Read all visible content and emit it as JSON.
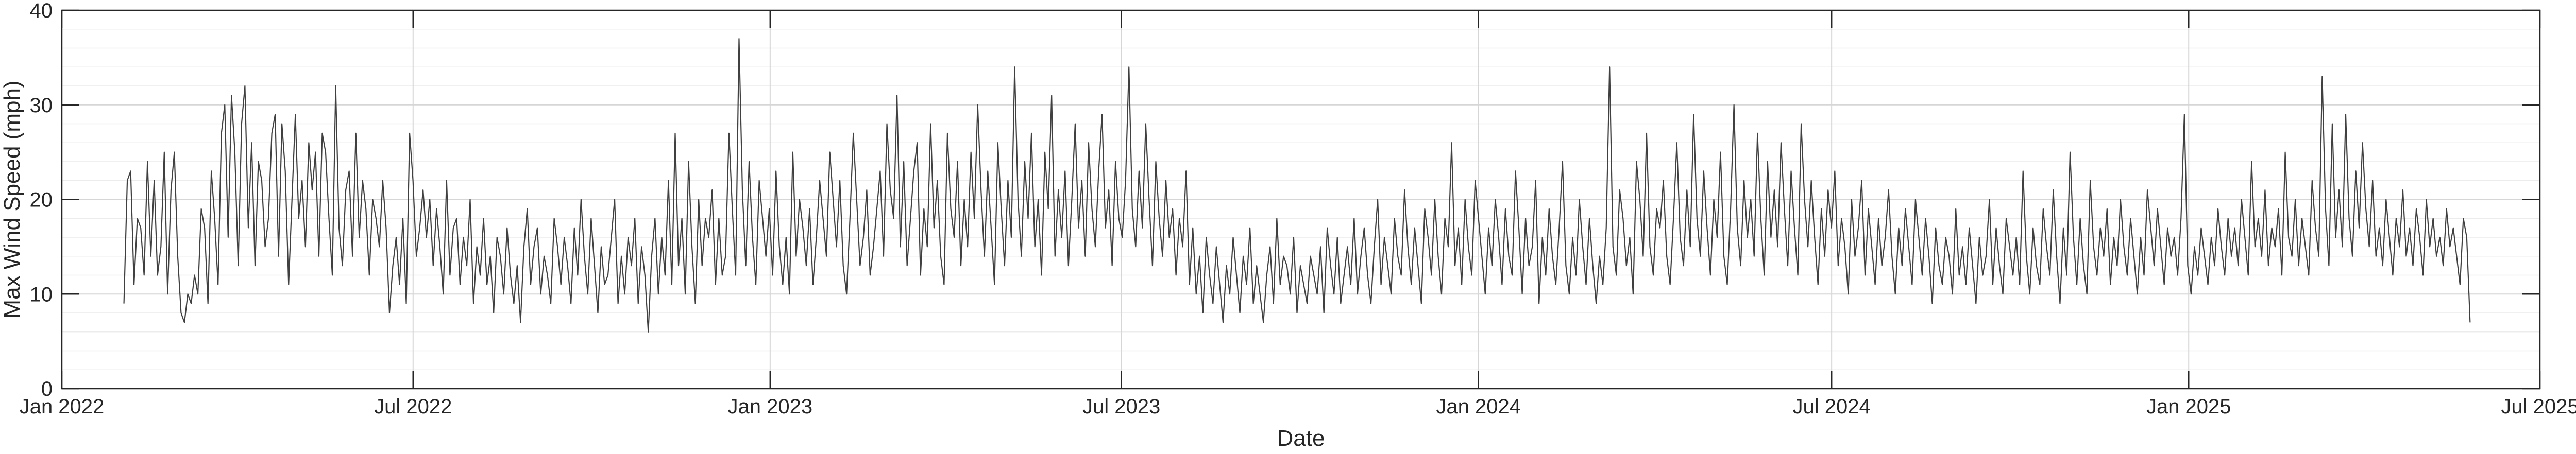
{
  "chart_data": {
    "type": "line",
    "title": "",
    "xlabel": "Date",
    "ylabel": "Max Wind Speed (mph)",
    "ylim": [
      0,
      40
    ],
    "yticks": [
      0,
      10,
      20,
      30,
      40
    ],
    "ytick_labels": [
      "0",
      "10",
      "20",
      "30",
      "40"
    ],
    "xlim": [
      "2022-01-01",
      "2025-07-01"
    ],
    "xticks": [
      "2022-01-01",
      "2022-07-01",
      "2023-01-01",
      "2023-07-01",
      "2024-01-01",
      "2024-07-01",
      "2025-01-01",
      "2025-07-01"
    ],
    "xtick_labels": [
      "Jan 2022",
      "Jul 2022",
      "Jan 2023",
      "Jul 2023",
      "Jan 2024",
      "Jul 2024",
      "Jan 2025",
      "Jul 2025"
    ],
    "grid": true,
    "minor_grid": true,
    "line_color": "#404040",
    "series_start": "2022-02-02",
    "series_end": "2025-05-26",
    "series": [
      {
        "frequency": "2 days",
        "values": [
          9,
          22,
          23,
          11,
          18,
          17,
          12,
          24,
          14,
          22,
          12,
          15,
          25,
          10,
          21,
          25,
          14,
          8,
          7,
          10,
          9,
          12,
          10,
          19,
          17,
          9,
          23,
          18,
          11,
          27,
          30,
          16,
          31,
          25,
          13,
          28,
          32,
          17,
          26,
          13,
          24,
          22,
          15,
          18,
          27,
          29,
          14,
          28,
          23,
          11,
          20,
          29,
          18,
          22,
          15,
          26,
          21,
          25,
          14,
          27,
          25,
          18,
          12,
          32,
          17,
          13,
          21,
          23,
          14,
          27,
          16,
          22,
          19,
          12,
          20,
          18,
          15,
          22,
          17,
          8,
          13,
          16,
          11,
          18,
          9,
          27,
          22,
          14,
          17,
          21,
          16,
          20,
          13,
          19,
          15,
          10,
          22,
          12,
          17,
          18,
          11,
          16,
          13,
          20,
          9,
          15,
          12,
          18,
          11,
          14,
          8,
          16,
          14,
          10,
          17,
          12,
          9,
          13,
          7,
          15,
          19,
          11,
          15,
          17,
          10,
          14,
          12,
          9,
          18,
          15,
          11,
          16,
          13,
          9,
          17,
          12,
          20,
          14,
          10,
          18,
          13,
          8,
          15,
          11,
          12,
          16,
          20,
          9,
          14,
          10,
          16,
          13,
          18,
          9,
          15,
          12,
          6,
          14,
          18,
          10,
          16,
          12,
          22,
          11,
          27,
          13,
          18,
          10,
          24,
          15,
          9,
          20,
          13,
          18,
          16,
          21,
          11,
          18,
          12,
          14,
          27,
          19,
          12,
          37,
          21,
          13,
          24,
          16,
          11,
          22,
          18,
          14,
          19,
          12,
          23,
          15,
          11,
          16,
          10,
          25,
          14,
          20,
          17,
          13,
          19,
          11,
          16,
          22,
          18,
          14,
          25,
          20,
          15,
          22,
          13,
          10,
          18,
          27,
          20,
          13,
          16,
          21,
          12,
          15,
          19,
          23,
          14,
          28,
          21,
          18,
          31,
          15,
          24,
          13,
          18,
          23,
          26,
          12,
          19,
          15,
          28,
          17,
          22,
          14,
          11,
          27,
          19,
          16,
          24,
          13,
          20,
          15,
          25,
          18,
          30,
          21,
          14,
          23,
          17,
          11,
          26,
          19,
          13,
          22,
          16,
          34,
          20,
          14,
          24,
          18,
          27,
          15,
          20,
          12,
          25,
          19,
          31,
          14,
          21,
          16,
          23,
          13,
          20,
          28,
          17,
          22,
          14,
          26,
          19,
          15,
          23,
          29,
          17,
          21,
          13,
          24,
          18,
          16,
          22,
          34,
          19,
          15,
          23,
          17,
          28,
          20,
          13,
          24,
          18,
          14,
          22,
          16,
          19,
          12,
          18,
          15,
          23,
          11,
          17,
          10,
          14,
          8,
          16,
          12,
          9,
          15,
          11,
          7,
          13,
          10,
          16,
          12,
          8,
          14,
          11,
          17,
          9,
          13,
          10,
          7,
          12,
          15,
          9,
          18,
          11,
          14,
          13,
          10,
          16,
          8,
          13,
          11,
          9,
          14,
          12,
          10,
          15,
          8,
          17,
          13,
          10,
          16,
          9,
          12,
          15,
          11,
          18,
          10,
          14,
          17,
          12,
          9,
          15,
          20,
          11,
          16,
          13,
          10,
          18,
          14,
          12,
          21,
          15,
          11,
          17,
          13,
          9,
          19,
          16,
          12,
          20,
          14,
          10,
          18,
          15,
          26,
          13,
          17,
          11,
          20,
          15,
          12,
          22,
          18,
          14,
          10,
          17,
          13,
          20,
          16,
          11,
          19,
          14,
          12,
          23,
          17,
          10,
          18,
          13,
          15,
          22,
          9,
          16,
          12,
          19,
          14,
          11,
          17,
          24,
          13,
          10,
          16,
          12,
          20,
          15,
          11,
          18,
          13,
          9,
          14,
          11,
          17,
          34,
          15,
          12,
          21,
          18,
          13,
          16,
          10,
          24,
          20,
          14,
          27,
          15,
          12,
          19,
          17,
          22,
          14,
          11,
          18,
          26,
          16,
          13,
          21,
          15,
          29,
          18,
          14,
          23,
          17,
          12,
          20,
          16,
          25,
          14,
          11,
          19,
          30,
          17,
          13,
          22,
          16,
          20,
          14,
          27,
          18,
          12,
          24,
          16,
          21,
          15,
          26,
          19,
          13,
          23,
          17,
          12,
          28,
          20,
          15,
          22,
          16,
          11,
          19,
          14,
          21,
          17,
          23,
          13,
          18,
          15,
          10,
          20,
          14,
          17,
          22,
          12,
          19,
          15,
          11,
          18,
          13,
          16,
          21,
          14,
          10,
          17,
          13,
          19,
          15,
          11,
          20,
          16,
          12,
          18,
          14,
          9,
          17,
          13,
          11,
          16,
          14,
          10,
          19,
          12,
          15,
          11,
          17,
          13,
          9,
          16,
          12,
          14,
          20,
          11,
          17,
          13,
          10,
          18,
          15,
          12,
          16,
          11,
          23,
          14,
          10,
          17,
          13,
          11,
          19,
          15,
          12,
          21,
          14,
          9,
          17,
          12,
          25,
          16,
          11,
          18,
          13,
          10,
          22,
          15,
          12,
          17,
          14,
          19,
          11,
          16,
          13,
          20,
          15,
          12,
          18,
          14,
          10,
          16,
          12,
          21,
          17,
          13,
          19,
          15,
          11,
          17,
          14,
          16,
          12,
          18,
          29,
          13,
          10,
          15,
          12,
          17,
          14,
          11,
          16,
          13,
          19,
          15,
          12,
          18,
          14,
          17,
          13,
          20,
          16,
          12,
          24,
          15,
          18,
          14,
          21,
          13,
          17,
          15,
          19,
          12,
          25,
          16,
          14,
          20,
          13,
          18,
          15,
          12,
          22,
          17,
          14,
          33,
          19,
          13,
          28,
          16,
          21,
          15,
          29,
          18,
          14,
          23,
          17,
          26,
          19,
          15,
          22,
          14,
          17,
          13,
          20,
          16,
          12,
          18,
          15,
          21,
          14,
          17,
          13,
          19,
          16,
          12,
          20,
          15,
          18,
          14,
          16,
          13,
          19,
          15,
          17,
          14,
          11,
          18,
          16,
          7
        ]
      }
    ]
  }
}
